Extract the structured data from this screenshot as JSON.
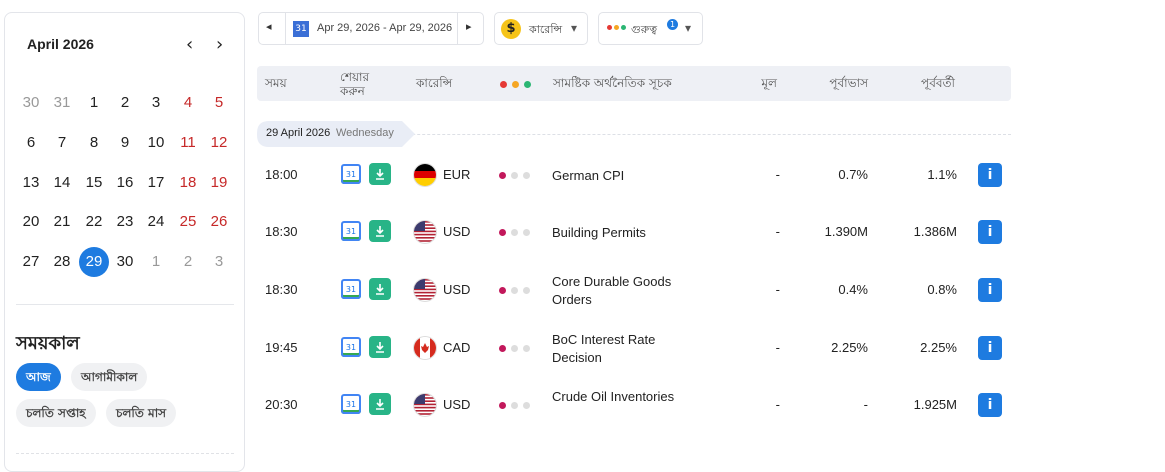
{
  "calendar": {
    "title": "April 2026",
    "prev": "‹",
    "next": "›",
    "selected_day": 29,
    "weeks": [
      [
        30,
        31,
        1,
        2,
        3,
        4,
        5
      ],
      [
        6,
        7,
        8,
        9,
        10,
        11,
        12
      ],
      [
        13,
        14,
        15,
        16,
        17,
        18,
        19
      ],
      [
        20,
        21,
        22,
        23,
        24,
        25,
        26
      ],
      [
        27,
        28,
        29,
        30,
        1,
        2,
        3
      ]
    ]
  },
  "period": {
    "title": "সময়কাল",
    "options": [
      "আজ",
      "আগামীকাল",
      "চলতি সপ্তাহ",
      "চলতি মাস"
    ],
    "active": "আজ"
  },
  "toolbar": {
    "prev": "◂",
    "next": "▸",
    "calendar_icon": "31",
    "date_range": "Apr 29, 2026 - Apr 29, 2026",
    "currency_icon": "$",
    "currency": "কারেন্সি",
    "importance": "গুরুত্ব",
    "importance_badge": "1",
    "caret": "▾"
  },
  "table": {
    "headers": [
      "সময়",
      "শেয়ার করুন",
      "কারেন্সি",
      "সামষ্টিক অর্থনৈতিক সূচক",
      "মূল",
      "পূর্বাভাস",
      "পূর্ববর্তী"
    ],
    "date": "29 April 2026",
    "weekday": "Wednesday",
    "info_icon": "i",
    "rows": [
      {
        "time": "18:00",
        "currency": "EUR",
        "importance": 1,
        "event": "German CPI",
        "actual": "-",
        "forecast": "0.7%",
        "previous": "1.1%"
      },
      {
        "time": "18:30",
        "currency": "USD",
        "importance": 1,
        "event": "Building Permits",
        "actual": "-",
        "forecast": "1.390M",
        "previous": "1.386M"
      },
      {
        "time": "18:30",
        "currency": "USD",
        "importance": 1,
        "event": "Core Durable Goods Orders",
        "actual": "-",
        "forecast": "0.4%",
        "previous": "0.8%"
      },
      {
        "time": "19:45",
        "currency": "CAD",
        "importance": 1,
        "event": "BoC Interest Rate Decision",
        "actual": "-",
        "forecast": "2.25%",
        "previous": "2.25%"
      },
      {
        "time": "20:30",
        "currency": "USD",
        "importance": 1,
        "event": "Crude Oil Inventories",
        "actual": "-",
        "forecast": "-",
        "previous": "1.925M"
      }
    ]
  }
}
